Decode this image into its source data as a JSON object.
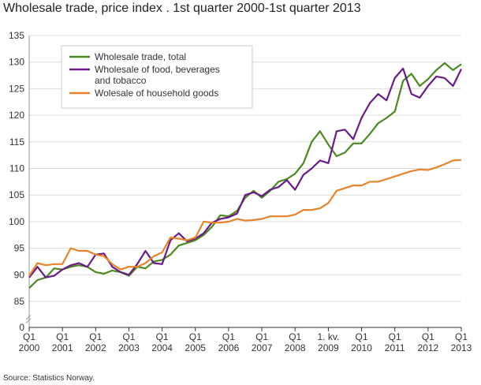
{
  "chart_data": {
    "type": "line",
    "title": "Wholesale trade, price index . 1st quarter 2000-1st quarter 2013",
    "source": "Source: Statistics Norway.",
    "categories": [
      "Q1\n2000",
      null,
      null,
      null,
      "Q1\n2001",
      null,
      null,
      null,
      "Q1\n2002",
      null,
      null,
      null,
      "Q1\n2003",
      null,
      null,
      null,
      "Q1\n2004",
      null,
      null,
      null,
      "Q1\n2005",
      null,
      null,
      null,
      "Q1\n2006",
      null,
      null,
      null,
      "Q1\n2007",
      null,
      null,
      null,
      "Q1\n2008",
      null,
      null,
      null,
      "1. kv.\n2009",
      null,
      null,
      null,
      "Q1\n2010",
      null,
      null,
      null,
      "Q1\n2011",
      null,
      null,
      null,
      "Q1\n2012",
      null,
      null,
      null,
      "Q1\n2013"
    ],
    "series": [
      {
        "name": "Wholesale trade, total",
        "color": "#4a8a1e",
        "values": [
          87.5,
          89,
          89.5,
          91.2,
          91,
          91.5,
          91.8,
          91.5,
          90.5,
          90.2,
          90.8,
          90.5,
          89.8,
          91.5,
          91.2,
          92.5,
          92.8,
          93.8,
          95.5,
          96,
          96.5,
          97.5,
          99,
          101.2,
          101,
          102,
          104.5,
          105.8,
          104.5,
          105.8,
          107.5,
          108,
          109,
          111,
          115,
          117,
          114.5,
          112.3,
          113,
          114.7,
          114.7,
          116.5,
          118.5,
          119.5,
          120.7,
          126.5,
          127.8,
          125.5,
          126.8,
          128.5,
          129.8,
          128.5,
          129.6
        ]
      },
      {
        "name": "Wholesale of food, beverages\nand tobacco",
        "color": "#6a1b8a",
        "values": [
          89.5,
          91.5,
          89.5,
          89.8,
          91,
          91.8,
          92.2,
          91.5,
          93.8,
          94,
          91.5,
          90.5,
          90,
          92,
          94.5,
          92.2,
          92,
          96.5,
          97.8,
          96.3,
          96.8,
          97.8,
          99.8,
          100.5,
          100.8,
          101.5,
          105,
          105.5,
          104.8,
          106,
          106.5,
          107.8,
          106,
          108.8,
          110,
          111.5,
          111,
          117,
          117.3,
          115.5,
          119.5,
          122.3,
          124,
          122.8,
          127,
          128.8,
          124,
          123.3,
          125.5,
          127.3,
          127,
          125.5,
          128.7
        ]
      },
      {
        "name": "Wolesale of household goods",
        "color": "#e8832a",
        "values": [
          89.8,
          92.2,
          91.8,
          92,
          92,
          95,
          94.5,
          94.5,
          93.8,
          93.5,
          92,
          91,
          91.5,
          91.5,
          92.2,
          93.5,
          94.2,
          97,
          96.8,
          96.5,
          97,
          100,
          99.8,
          99.8,
          100,
          100.5,
          100.2,
          100.3,
          100.5,
          101,
          101,
          101,
          101.3,
          102.2,
          102.2,
          102.5,
          103.5,
          105.8,
          106.3,
          106.8,
          106.8,
          107.5,
          107.5,
          108,
          108.5,
          109,
          109.5,
          109.8,
          109.7,
          110.2,
          110.8,
          111.5,
          111.6
        ]
      }
    ],
    "ylim": [
      0,
      135
    ],
    "yticks": [
      0,
      85,
      90,
      95,
      100,
      105,
      110,
      115,
      120,
      125,
      130,
      135
    ],
    "axis_break": true,
    "grid": true
  }
}
